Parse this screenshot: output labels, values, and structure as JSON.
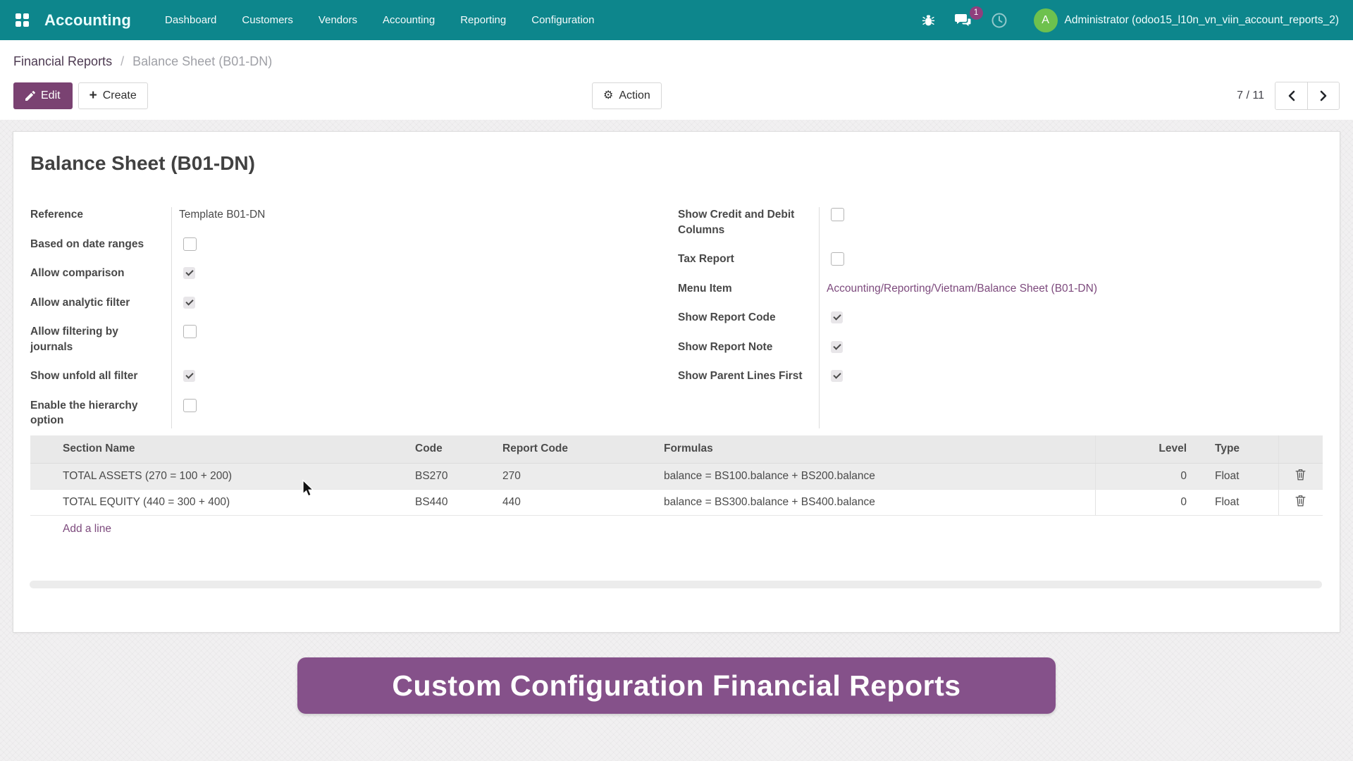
{
  "colors": {
    "navbar_teal": "#0d868c",
    "badge_purple": "#8f3f7d",
    "avatar_green": "#6ec14e",
    "primary_purple": "#7a4272",
    "link_purple": "#7d4a7d",
    "breadcrumb_purple": "#4d3a51",
    "banner_purple": "#85518a"
  },
  "navbar": {
    "brand": "Accounting",
    "menus": [
      "Dashboard",
      "Customers",
      "Vendors",
      "Accounting",
      "Reporting",
      "Configuration"
    ],
    "icons": [
      "bug-icon",
      "messages-icon",
      "activity-clock-icon"
    ],
    "message_badge": "1",
    "avatar_letter": "A",
    "user": "Administrator (odoo15_l10n_vn_viin_account_reports_2)"
  },
  "breadcrumb": {
    "parent": "Financial Reports",
    "separator": "/",
    "current": "Balance Sheet (B01-DN)"
  },
  "controls": {
    "edit": "Edit",
    "create": "Create",
    "action": "Action",
    "pager_text": "7 / 11"
  },
  "form": {
    "title": "Balance Sheet (B01-DN)",
    "left_fields": [
      {
        "label": "Reference",
        "type": "text",
        "value": "Template B01-DN"
      },
      {
        "label": "Based on date ranges",
        "type": "checkbox",
        "checked": false
      },
      {
        "label": "Allow comparison",
        "type": "checkbox",
        "checked": true
      },
      {
        "label": "Allow analytic filter",
        "type": "checkbox",
        "checked": true
      },
      {
        "label": "Allow filtering by journals",
        "type": "checkbox",
        "checked": false
      },
      {
        "label": "Show unfold all filter",
        "type": "checkbox",
        "checked": true
      },
      {
        "label": "Enable the hierarchy option",
        "type": "checkbox",
        "checked": false
      }
    ],
    "right_fields": [
      {
        "label": "Show Credit and Debit Columns",
        "type": "checkbox",
        "checked": false
      },
      {
        "label": "Tax Report",
        "type": "checkbox",
        "checked": false
      },
      {
        "label": "Menu Item",
        "type": "link",
        "value": "Accounting/Reporting/Vietnam/Balance Sheet (B01-DN)"
      },
      {
        "label": "Show Report Code",
        "type": "checkbox",
        "checked": true
      },
      {
        "label": "Show Report Note",
        "type": "checkbox",
        "checked": true
      },
      {
        "label": "Show Parent Lines First",
        "type": "checkbox",
        "checked": true
      }
    ]
  },
  "table": {
    "headers": [
      "Section Name",
      "Code",
      "Report Code",
      "Formulas",
      "Level",
      "Type"
    ],
    "rows": [
      {
        "section_name": "TOTAL ASSETS (270 = 100 + 200)",
        "code": "BS270",
        "report_code": "270",
        "formulas": "balance = BS100.balance + BS200.balance",
        "level": "0",
        "type": "Float",
        "hover": true
      },
      {
        "section_name": "TOTAL EQUITY (440 = 300 + 400)",
        "code": "BS440",
        "report_code": "440",
        "formulas": "balance = BS300.balance + BS400.balance",
        "level": "0",
        "type": "Float",
        "hover": false
      }
    ],
    "add_line": "Add a line"
  },
  "banner": {
    "text": "Custom Configuration Financial Reports"
  }
}
